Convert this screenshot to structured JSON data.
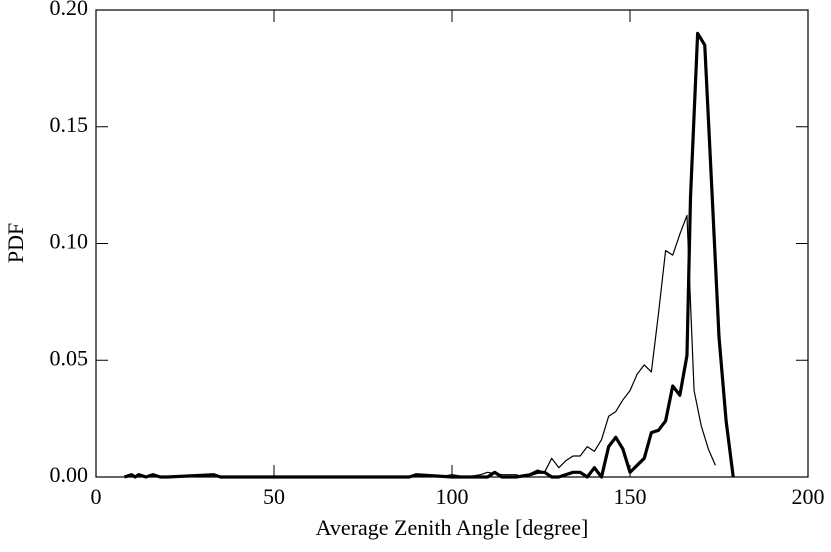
{
  "chart_data": {
    "type": "line",
    "x_label": "Average Zenith Angle [degree]",
    "y_label": "PDF",
    "xlim": [
      0,
      200
    ],
    "xticks": [
      0,
      50,
      100,
      150,
      200
    ],
    "ylim": [
      0,
      0.2
    ],
    "yticks": [
      {
        "value": 0,
        "label": "0.00"
      },
      {
        "value": 0.05,
        "label": "0.05"
      },
      {
        "value": 0.1,
        "label": "0.10"
      },
      {
        "value": 0.15,
        "label": "0.15"
      },
      {
        "value": 0.2,
        "label": "0.20"
      }
    ],
    "series": [
      {
        "color": "#000000",
        "width": 3.2,
        "x": [
          8,
          10,
          11,
          12,
          14,
          16,
          18,
          20,
          33,
          35,
          88,
          90,
          100,
          110,
          112,
          114,
          118,
          122,
          124,
          126,
          128,
          130,
          132,
          134,
          136,
          138,
          140,
          142,
          144,
          146,
          148,
          150,
          152,
          154,
          156,
          158,
          160,
          162,
          164,
          166,
          167,
          169,
          171,
          173,
          175,
          177,
          179
        ],
        "values": [
          0,
          0.001,
          0,
          0.001,
          0,
          0.001,
          0,
          0,
          0.001,
          0,
          0,
          0.001,
          0,
          0,
          0.002,
          0,
          0,
          0.001,
          0.002,
          0.002,
          0,
          0,
          0.001,
          0.002,
          0.002,
          0,
          0.004,
          0,
          0.013,
          0.017,
          0.012,
          0.002,
          0.005,
          0.008,
          0.019,
          0.02,
          0.024,
          0.039,
          0.035,
          0.052,
          0.12,
          0.19,
          0.185,
          0.123,
          0.06,
          0.024,
          0
        ]
      },
      {
        "color": "#000000",
        "width": 1.2,
        "x": [
          88,
          92,
          96,
          100,
          104,
          108,
          110,
          114,
          118,
          120,
          124,
          126,
          128,
          130,
          132,
          134,
          136,
          138,
          140,
          142,
          144,
          146,
          148,
          150,
          152,
          154,
          156,
          158,
          160,
          162,
          164,
          166,
          168,
          170,
          172,
          174
        ],
        "values": [
          0,
          0.001,
          0,
          0.001,
          0,
          0.001,
          0.002,
          0.001,
          0.001,
          0,
          0.003,
          0.002,
          0.008,
          0.004,
          0.007,
          0.009,
          0.009,
          0.013,
          0.011,
          0.016,
          0.026,
          0.028,
          0.033,
          0.037,
          0.044,
          0.048,
          0.045,
          0.07,
          0.097,
          0.095,
          0.104,
          0.112,
          0.037,
          0.022,
          0.012,
          0.005
        ]
      }
    ]
  }
}
